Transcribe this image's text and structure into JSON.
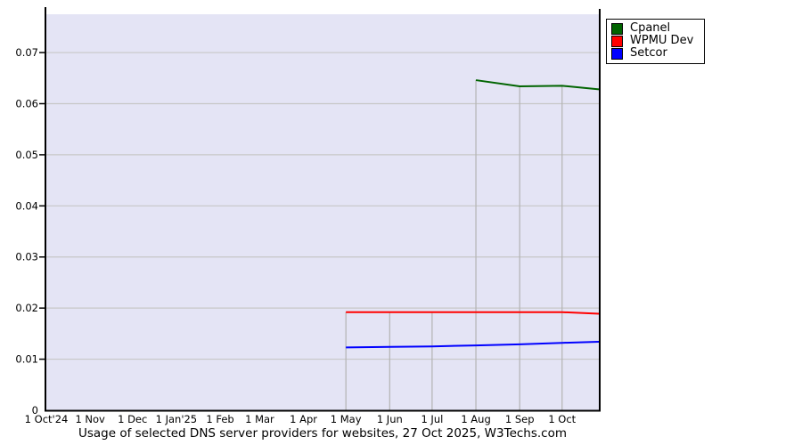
{
  "page": {
    "background": "#ffffff"
  },
  "chart_data": {
    "type": "line",
    "title": "Usage of selected DNS server providers for websites, 27 Oct 2025, W3Techs.com",
    "x_axis": {
      "tick_labels": [
        "1 Oct'24",
        "1 Nov",
        "1 Dec",
        "1 Jan'25",
        "1 Feb",
        "1 Mar",
        "1 Apr",
        "1 May",
        "1 Jun",
        "1 Jul",
        "1 Aug",
        "1 Sep",
        "1 Oct"
      ],
      "tick_days": [
        0,
        31,
        61,
        92,
        123,
        151,
        182,
        212,
        243,
        273,
        304,
        335,
        365
      ],
      "range_days": [
        0,
        391
      ]
    },
    "y_axis": {
      "tick_labels": [
        "0",
        "0.01",
        "0.02",
        "0.03",
        "0.04",
        "0.05",
        "0.06",
        "0.07"
      ],
      "tick_values": [
        0,
        0.01,
        0.02,
        0.03,
        0.04,
        0.05,
        0.06,
        0.07
      ],
      "ylim": [
        0,
        0.0775
      ]
    },
    "grid": {
      "horizontal": true,
      "vertical_gridline_days": [
        212,
        243,
        273,
        304,
        335,
        365
      ],
      "vertical_note": "vertical gridlines span only from topmost series value down to x-axis"
    },
    "colors": {
      "plot_bg": "#e4e4f5",
      "grid_h": "#c7c7c7",
      "grid_v": "#b3b3b3",
      "axis": "#000000"
    },
    "legend_position": "top-right-outside",
    "series": [
      {
        "name": "Cpanel",
        "color": "#006400",
        "x_days": [
          304,
          335,
          365,
          391
        ],
        "values": [
          0.0646,
          0.0634,
          0.0635,
          0.0628
        ]
      },
      {
        "name": "WPMU Dev",
        "color": "#ff0000",
        "x_days": [
          212,
          243,
          273,
          304,
          335,
          365,
          391
        ],
        "values": [
          0.0192,
          0.0192,
          0.0192,
          0.0192,
          0.0192,
          0.0192,
          0.0189
        ]
      },
      {
        "name": "Setcor",
        "color": "#0000ff",
        "x_days": [
          212,
          243,
          273,
          304,
          335,
          365,
          391
        ],
        "values": [
          0.0123,
          0.0124,
          0.0125,
          0.0127,
          0.0129,
          0.0132,
          0.0134
        ]
      }
    ]
  }
}
